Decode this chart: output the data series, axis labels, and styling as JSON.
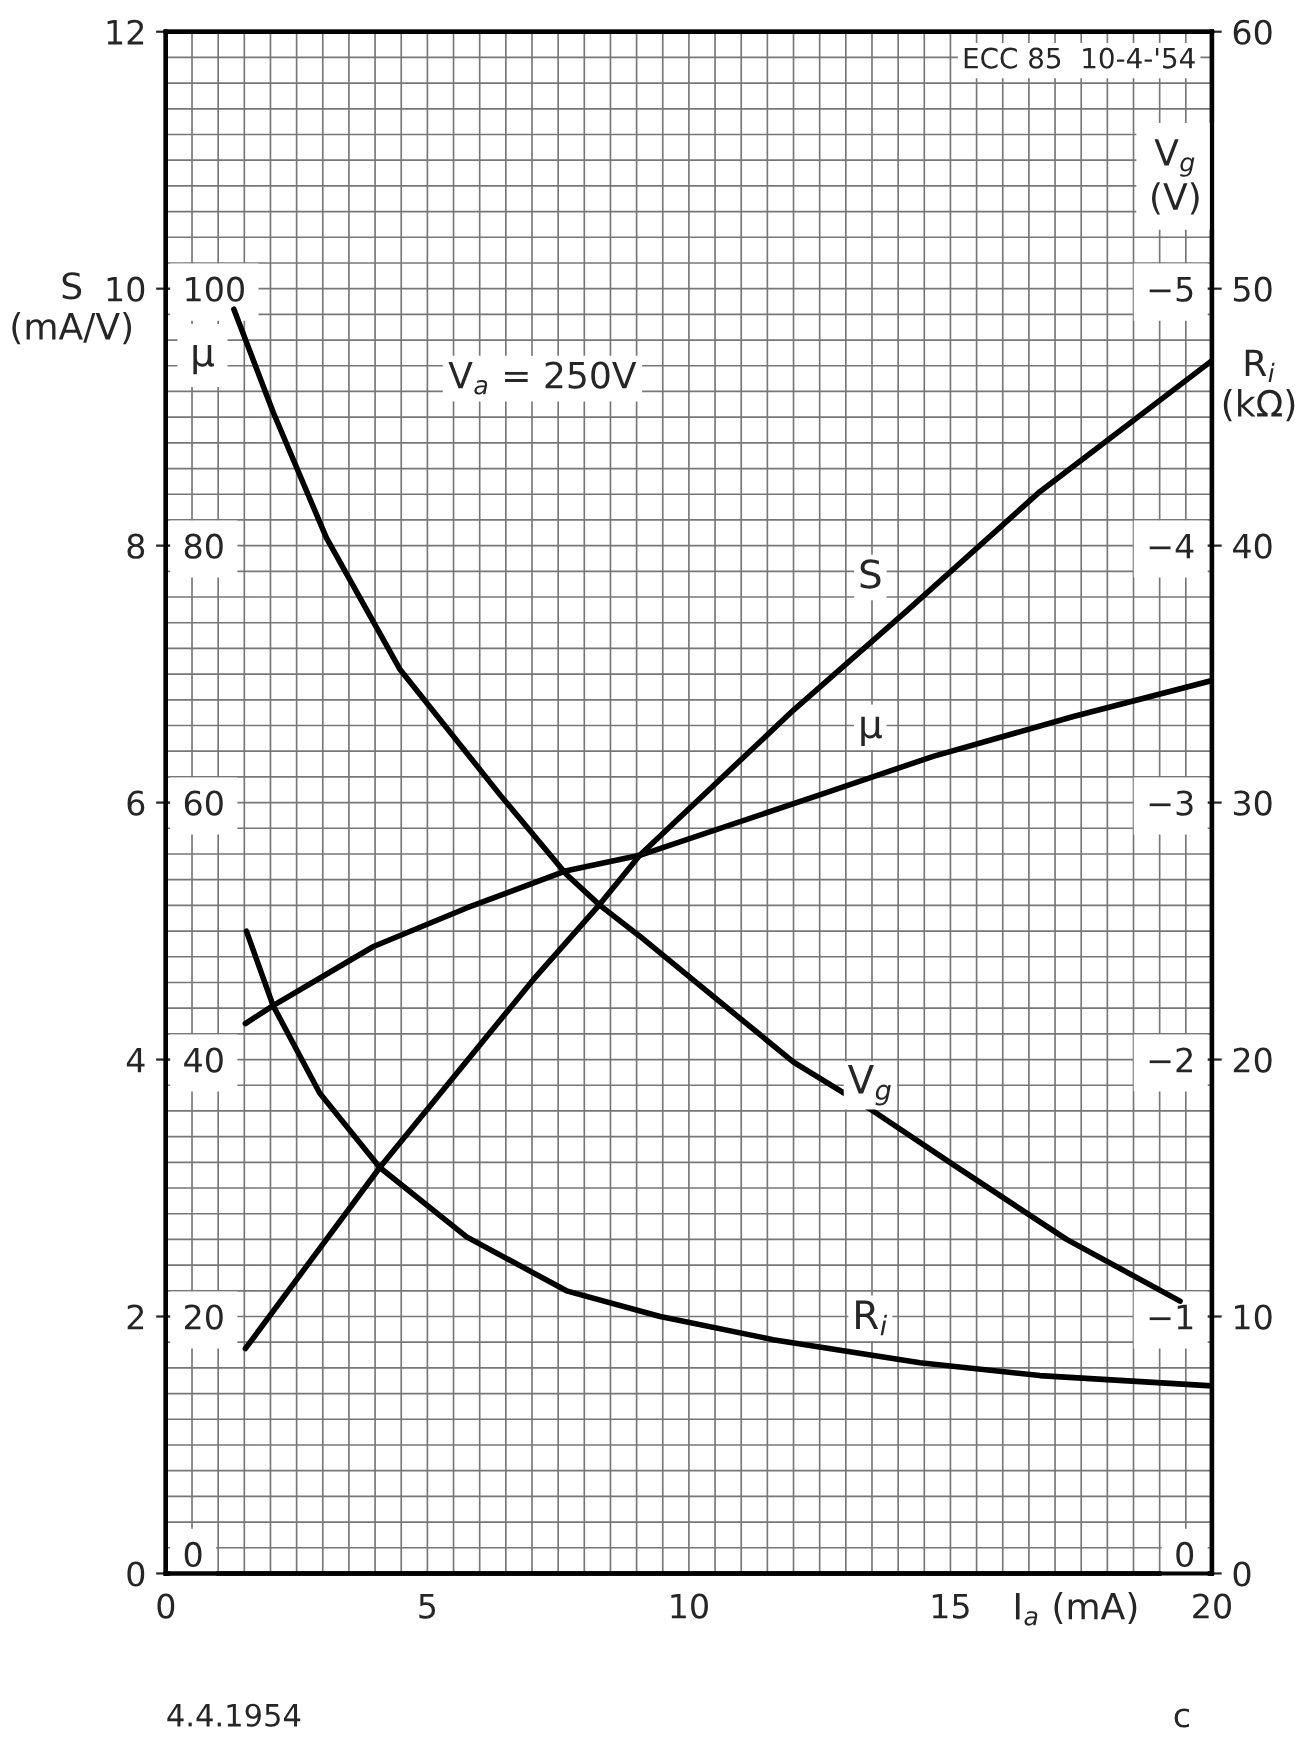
{
  "chart_data": [
    {
      "type": "line",
      "xlabel": "I$_{a}$ (mA)",
      "ylabel": "S\n(mA/V)",
      "y2label": "R$_{i}$\n(kΩ)",
      "y3label": "μ",
      "xlim": [
        0,
        20
      ],
      "xticks": [
        0,
        5,
        10,
        15,
        20
      ],
      "ylim": [
        0,
        12
      ],
      "yticks": [
        0,
        2,
        4,
        6,
        8,
        10,
        12
      ],
      "y2lim": [
        0,
        60
      ],
      "y2ticks": [
        0,
        10,
        20,
        30,
        40,
        50,
        60
      ],
      "y3lim": [
        0,
        120
      ],
      "y3ticks": [
        0,
        20,
        40,
        60,
        80,
        100
      ],
      "grid": true,
      "line_style": "solid",
      "marker": "none",
      "annotations": [
        "V$_{a}$ = 250V",
        "ECC 85  10-4-'54",
        "4.4.1954",
        "c"
      ],
      "series": [
        {
          "name": "S",
          "color": "#000000",
          "x": [
            1.52,
            4.09,
            7.02,
            8.3,
            9.06,
            12.0,
            14.16,
            16.71,
            20.0
          ],
          "values": [
            1.75,
            3.16,
            4.62,
            5.21,
            5.59,
            6.72,
            7.49,
            8.42,
            9.44
          ]
        },
        {
          "name": "μ",
          "axis": "y3",
          "color": "#000000",
          "x": [
            1.52,
            2.05,
            3.97,
            5.75,
            7.66,
            9.06,
            12.5,
            14.67,
            17.35,
            20.0
          ],
          "values": [
            42.8,
            44.2,
            48.8,
            51.8,
            54.7,
            55.9,
            60.6,
            63.6,
            66.7,
            69.5
          ]
        },
        {
          "name": "R$_{i}$",
          "axis": "y2",
          "color": "#000000",
          "x": [
            1.54,
            2.05,
            2.94,
            4.09,
            5.75,
            7.66,
            9.45,
            11.61,
            14.42,
            16.71,
            20.0
          ],
          "values": [
            25.0,
            22.1,
            18.7,
            15.8,
            13.1,
            11.0,
            10.0,
            9.1,
            8.2,
            7.7,
            7.3
          ]
        }
      ]
    },
    {
      "type": "line",
      "ylabel": "V$_{g}$\n(V)",
      "xlim": [
        0,
        20
      ],
      "ylim": [
        0,
        -6
      ],
      "tick_labels": "y",
      "yticks": [
        {
          "value": 0,
          "label": "0"
        },
        {
          "value": -1,
          "label": "−1"
        },
        {
          "value": -2,
          "label": "−2"
        },
        {
          "value": -3,
          "label": "−3"
        },
        {
          "value": -4,
          "label": "−4"
        },
        {
          "value": -5,
          "label": "−5"
        }
      ],
      "line_style": "solid",
      "marker": "none",
      "series": [
        {
          "name": "V$_{g}$",
          "color": "#000000",
          "x": [
            1.3,
            2.05,
            3.07,
            4.47,
            6.39,
            7.66,
            8.3,
            9.06,
            12.0,
            13.52,
            15.06,
            17.22,
            19.39
          ],
          "values": [
            -4.92,
            -4.52,
            -4.03,
            -3.52,
            -3.03,
            -2.72,
            -2.6,
            -2.48,
            -1.99,
            -1.8,
            -1.59,
            -1.3,
            -1.06
          ]
        }
      ]
    }
  ]
}
